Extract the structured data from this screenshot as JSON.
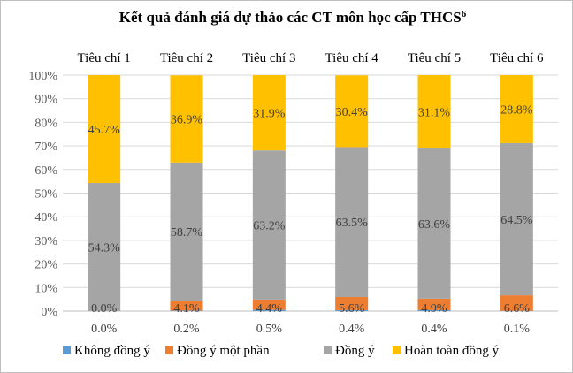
{
  "chart_data": {
    "type": "bar",
    "stacked": true,
    "stack_mode": "percent",
    "title": "Kết quả đánh giá dự thảo các CT môn học cấp THCS",
    "title_superscript": "6",
    "categories": [
      "Tiêu chí 1",
      "Tiêu chí 2",
      "Tiêu chí 3",
      "Tiêu chí 4",
      "Tiêu chí 5",
      "Tiêu chí 6"
    ],
    "series": [
      {
        "name": "Không đồng ý",
        "color": "#5b9bd5",
        "values": [
          0.0,
          0.2,
          0.5,
          0.4,
          0.4,
          0.1
        ],
        "labels": [
          "0.0%",
          "0.2%",
          "0.5%",
          "0.4%",
          "0.4%",
          "0.1%"
        ]
      },
      {
        "name": "Đồng ý một phần",
        "color": "#ed7d31",
        "values": [
          0.0,
          4.1,
          4.4,
          5.6,
          4.9,
          6.6
        ],
        "labels": [
          "0.0%",
          "4.1%",
          "4.4%",
          "5.6%",
          "4.9%",
          "6.6%"
        ]
      },
      {
        "name": "Đồng ý",
        "color": "#a5a5a5",
        "values": [
          54.3,
          58.7,
          63.2,
          63.5,
          63.6,
          64.5
        ],
        "labels": [
          "54.3%",
          "58.7%",
          "63.2%",
          "63.5%",
          "63.6%",
          "64.5%"
        ]
      },
      {
        "name": "Hoàn toàn đồng ý",
        "color": "#ffc000",
        "values": [
          45.7,
          36.9,
          31.9,
          30.4,
          31.1,
          28.8
        ],
        "labels": [
          "45.7%",
          "36.9%",
          "31.9%",
          "30.4%",
          "31.1%",
          "28.8%"
        ]
      }
    ],
    "y_ticks": [
      "0%",
      "10%",
      "20%",
      "30%",
      "40%",
      "50%",
      "60%",
      "70%",
      "80%",
      "90%",
      "100%"
    ],
    "ylim": [
      0,
      100
    ],
    "grid": true,
    "legend": "bottom",
    "category_labels_position": "top"
  }
}
